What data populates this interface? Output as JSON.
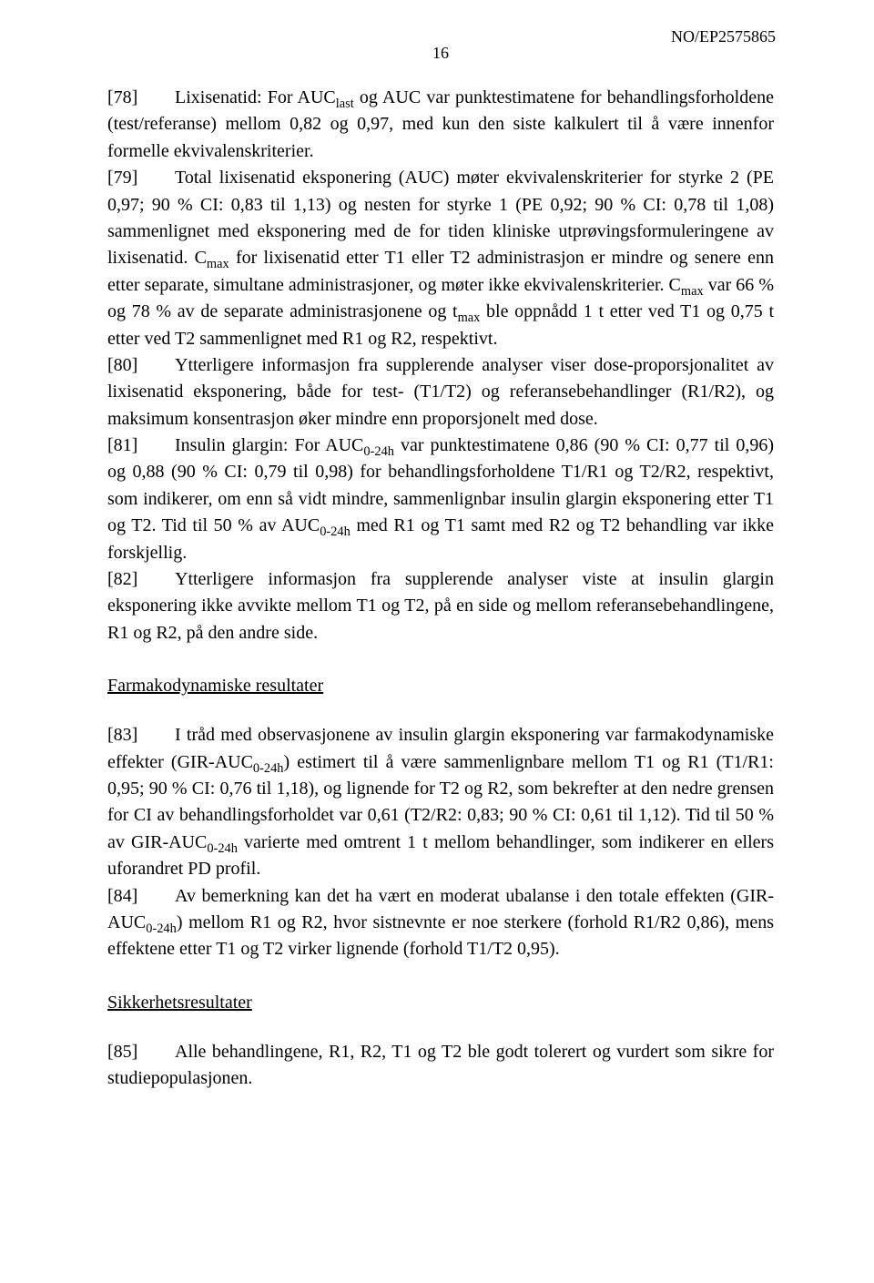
{
  "doc": {
    "header": "NO/EP2575865",
    "page_number": "16"
  },
  "paragraphs": {
    "p78": {
      "bracket": "[78]",
      "t1": "Lixisenatid: For AUC",
      "sub1": "last",
      "t2": " og AUC var punktestimatene for behandlings­forholdene (test/referanse) mellom 0,82 og 0,97, med kun den siste kalkulert til å være innenfor formelle ekvivalenskriterier."
    },
    "p79": {
      "bracket": "[79]",
      "t1": "Total lixisenatid eksponering (AUC) møter ekvivalenskriterier for styrke 2 (PE 0,97; 90 % CI: 0,83 til 1,13) og nesten for styrke 1 (PE 0,92; 90 % CI: 0,78 til 1,08) sammenlignet med eksponering med de for tiden kliniske utprøvingsformu­leringene av lixisenatid. C",
      "sub1": "max",
      "t2": " for lixisenatid etter T1 eller T2 administrasjon er mindre og senere enn etter separate, simultane administrasjoner, og møter ikke ekvivalens­kriterier. C",
      "sub2": "max",
      "t3": " var 66 % og 78 % av de separate administrasjonene og t",
      "sub3": "max",
      "t4": " ble oppnådd 1 t etter ved T1 og 0,75 t etter ved T2 sammenlignet med R1 og R2, respektivt."
    },
    "p80": {
      "bracket": "[80]",
      "t1": "Ytterligere informasjon fra supplerende analyser viser dose-proporsjonalitet av lixisenatid eksponering, både for test- (T1/T2) og referansebehandlinger (R1/R2), og maksimum konsentrasjon øker mindre enn proporsjonelt med dose."
    },
    "p81": {
      "bracket": "[81]",
      "t1": "Insulin glargin: For AUC",
      "sub1": "0-24h",
      "t2": " var punktestimatene 0,86 (90 % CI: 0,77 til 0,96) og 0,88 (90 % CI: 0,79 til 0,98) for behandlingsforholdene T1/R1 og T2/R2, respektivt, som indikerer, om enn så vidt mindre, sammenlignbar insulin glargin eksponering etter T1 og T2. Tid til 50 % av AUC",
      "sub2": "0-24h",
      "t3": " med R1 og T1 samt med R2 og T2 behandling var ikke forskjellig."
    },
    "p82": {
      "bracket": "[82]",
      "t1": "Ytterligere informasjon fra supplerende analyser viste at insulin glargin eksponering ikke avvikte mellom T1 og T2, på en side og mellom referanse­behandlingene, R1 og R2, på den andre side."
    },
    "heading1": "Farmakodynamiske resultater",
    "p83": {
      "bracket": "[83]",
      "t1": "I tråd med observasjonene av insulin glargin eksponering var farmako­dynamiske effekter (GIR-AUC",
      "sub1": "0-24h",
      "t2": ") estimert til å være sammenlignbare mellom T1 og R1 (T1/R1: 0,95; 90 % CI: 0,76 til 1,18), og lignende for T2 og R2, som bekrefter at den nedre grensen for CI av behandlingsforholdet var 0,61 (T2/R2: 0,83; 90 % CI: 0,61 til 1,12). Tid til 50 % av GIR-AUC",
      "sub2": "0-24h",
      "t3": " varierte med omtrent 1 t mellom behandlinger, som indikerer en ellers uforandret PD profil."
    },
    "p84": {
      "bracket": "[84]",
      "t1": "Av bemerkning kan det ha vært en moderat ubalanse i den totale effekten (GIR-AUC",
      "sub1": "0-24h",
      "t2": ") mellom R1 og R2, hvor sistnevnte er noe sterkere (forhold R1/R2 0,86), mens effektene etter T1 og T2 virker lignende (forhold T1/T2 0,95)."
    },
    "heading2": "Sikkerhetsresultater",
    "p85": {
      "bracket": "[85]",
      "t1": "Alle behandlingene, R1, R2, T1 og T2 ble godt tolerert og vurdert som sikre for studiepopulasjonen."
    }
  }
}
